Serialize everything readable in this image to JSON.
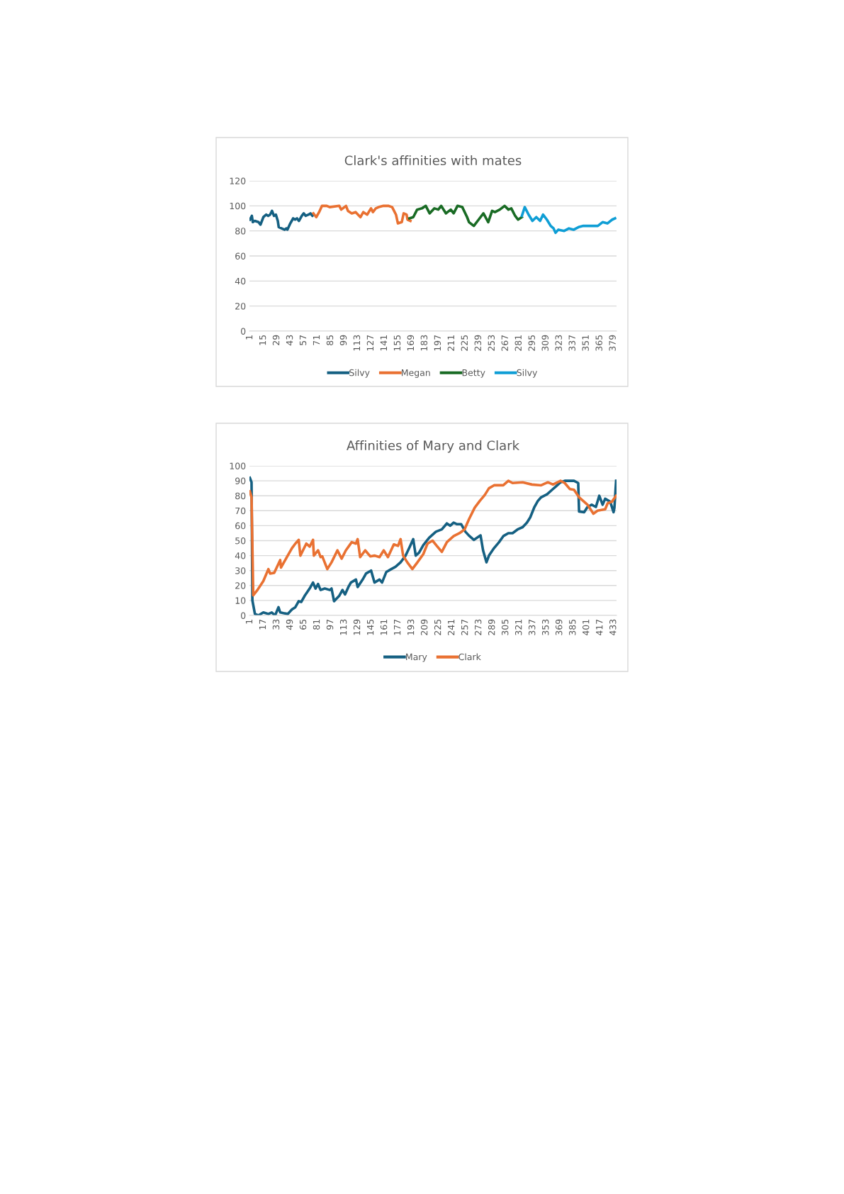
{
  "chart_data": [
    {
      "type": "line",
      "title": "Clark's affinities with mates",
      "xlim": [
        0.5,
        382.5
      ],
      "xticks": [
        1,
        15,
        29,
        43,
        57,
        71,
        85,
        99,
        113,
        127,
        141,
        155,
        169,
        183,
        197,
        211,
        225,
        239,
        253,
        267,
        281,
        295,
        309,
        323,
        337,
        351,
        365,
        379
      ],
      "ylim": [
        0,
        120
      ],
      "yticks": [
        0,
        20,
        40,
        60,
        80,
        100,
        120
      ],
      "grid": "y",
      "legend": "bottom",
      "marker": "none",
      "line_style": "solid",
      "series": [
        {
          "name": "Silvy",
          "color": "#156082",
          "x": [
            1,
            3,
            4,
            6,
            10,
            12,
            15,
            18,
            20,
            22,
            24,
            26,
            28,
            30,
            31,
            34,
            37,
            39,
            40,
            43,
            46,
            48,
            50,
            52,
            55,
            57,
            59,
            62,
            64,
            66,
            67
          ],
          "values": [
            89,
            92,
            87,
            88,
            87,
            85,
            91,
            93,
            92,
            93,
            96,
            92,
            93,
            88,
            83,
            82,
            81,
            82,
            81,
            86,
            90,
            89,
            90,
            88,
            92,
            94,
            92,
            93,
            94,
            92,
            93
          ]
        },
        {
          "name": "Megan",
          "color": "#E97132",
          "x": [
            67,
            70,
            73,
            76,
            81,
            84,
            94,
            96,
            101,
            103,
            107,
            111,
            116,
            119,
            123,
            127,
            129,
            132,
            135,
            140,
            145,
            149,
            153,
            155,
            159,
            161,
            164,
            165,
            168
          ],
          "values": [
            94,
            91,
            95,
            100,
            100,
            99,
            100,
            97,
            100,
            96,
            94,
            95,
            91,
            95,
            93,
            98,
            95,
            98,
            99,
            100,
            100,
            99,
            93,
            86,
            87,
            94,
            93,
            89,
            88
          ]
        },
        {
          "name": "Betty",
          "color": "#196B24",
          "x": [
            167,
            171,
            175,
            180,
            184,
            188,
            193,
            197,
            200,
            205,
            210,
            213,
            217,
            222,
            227,
            229,
            234,
            239,
            244,
            249,
            253,
            256,
            261,
            266,
            270,
            273,
            277,
            280,
            284
          ],
          "values": [
            90,
            91,
            97,
            98,
            100,
            94,
            98,
            97,
            100,
            94,
            97,
            94,
            100,
            99,
            91,
            87,
            84,
            89,
            94,
            87,
            96,
            95,
            97,
            100,
            97,
            98,
            92,
            89,
            91
          ]
        },
        {
          "name": "Silvy",
          "color": "#0F9ED5",
          "x": [
            284,
            287,
            291,
            295,
            299,
            303,
            306,
            310,
            314,
            317,
            319,
            322,
            328,
            333,
            338,
            343,
            348,
            353,
            358,
            363,
            368,
            373,
            378,
            381
          ],
          "values": [
            92,
            99,
            93,
            88,
            91,
            88,
            93,
            89,
            84,
            82,
            78.5,
            81,
            80,
            82,
            81,
            83,
            84,
            84,
            84,
            84,
            87,
            86,
            89,
            90
          ]
        }
      ]
    },
    {
      "type": "line",
      "title": "Affinities of Mary and Clark",
      "xlim": [
        0.5,
        436.5
      ],
      "xticks": [
        1,
        17,
        33,
        49,
        65,
        81,
        97,
        113,
        129,
        145,
        161,
        177,
        193,
        209,
        225,
        241,
        257,
        273,
        289,
        305,
        321,
        337,
        353,
        369,
        385,
        401,
        417,
        433
      ],
      "ylim": [
        0,
        100
      ],
      "yticks": [
        0,
        10,
        20,
        30,
        40,
        50,
        60,
        70,
        80,
        90,
        100
      ],
      "grid": "y",
      "legend": "bottom",
      "marker": "none",
      "line_style": "solid",
      "series": [
        {
          "name": "Mary",
          "color": "#156082",
          "x": [
            1,
            3,
            4,
            7,
            11,
            17,
            23,
            27,
            31,
            35,
            37,
            41,
            46,
            51,
            55,
            59,
            62,
            66,
            72,
            76,
            79,
            82,
            85,
            90,
            96,
            98,
            101,
            107,
            111,
            114,
            118,
            121,
            127,
            129,
            135,
            139,
            145,
            149,
            155,
            158,
            163,
            169,
            174,
            180,
            186,
            191,
            195,
            198,
            202,
            207,
            214,
            222,
            229,
            235,
            239,
            243,
            247,
            252,
            257,
            261,
            267,
            271,
            275,
            278,
            282,
            285,
            291,
            297,
            302,
            308,
            313,
            319,
            325,
            330,
            334,
            339,
            343,
            347,
            354,
            360,
            364,
            370,
            375,
            381,
            386,
            391,
            392,
            398,
            402,
            407,
            412,
            416,
            420,
            423,
            429,
            433,
            434,
            436
          ],
          "values": [
            92,
            89,
            10,
            1,
            0,
            2,
            1,
            2,
            0,
            5.5,
            2,
            1.5,
            1,
            4,
            5.5,
            9.5,
            9,
            13,
            18,
            22,
            18,
            21,
            17,
            18,
            17,
            18,
            9.5,
            13,
            17,
            14,
            19,
            22,
            24,
            19,
            24,
            28,
            30,
            22,
            24,
            22,
            29,
            31,
            32.5,
            35.5,
            40,
            46,
            51,
            40,
            42,
            47,
            52,
            56,
            57.5,
            61.5,
            60,
            62,
            61,
            61,
            56,
            53.5,
            50.5,
            52,
            53.5,
            43.5,
            35.5,
            40,
            45,
            49,
            53,
            55,
            55,
            57.5,
            59,
            62,
            65.5,
            72.5,
            76.5,
            79,
            81,
            84,
            86,
            89,
            90,
            90,
            90,
            88.5,
            69.5,
            69,
            72.5,
            74,
            72.5,
            80,
            74,
            78,
            76,
            69,
            72,
            90
          ]
        },
        {
          "name": "Clark",
          "color": "#E97132",
          "x": [
            1,
            3,
            5,
            10,
            17,
            23,
            25,
            30,
            37,
            38,
            45,
            51,
            55,
            59,
            61,
            68,
            72,
            76,
            77,
            82,
            85,
            87,
            93,
            98,
            105,
            110,
            115,
            122,
            127,
            129,
            132,
            138,
            144,
            149,
            155,
            160,
            165,
            172,
            177,
            180,
            183,
            188,
            194,
            200,
            207,
            212,
            218,
            223,
            229,
            235,
            243,
            250,
            256,
            261,
            268,
            274,
            280,
            285,
            291,
            302,
            308,
            313,
            325,
            336,
            347,
            355,
            361,
            370,
            375,
            381,
            386,
            392,
            398,
            402,
            409,
            414,
            423,
            426,
            431,
            436
          ],
          "values": [
            83,
            79,
            13.4,
            17,
            23,
            31,
            28,
            28.5,
            37,
            32,
            39,
            45,
            48,
            50.5,
            40,
            48,
            46,
            50.5,
            40,
            43.5,
            39,
            39.5,
            31,
            35.5,
            43.5,
            38,
            43.5,
            49,
            48,
            51,
            39,
            43.5,
            39.5,
            40,
            39,
            43.5,
            39,
            47.5,
            46.5,
            51,
            40,
            35.5,
            31,
            35.5,
            41,
            48,
            50,
            46.5,
            42.5,
            49,
            53,
            55,
            57.5,
            64,
            72,
            76.5,
            80.5,
            85,
            87,
            87,
            90,
            88.5,
            89,
            87.5,
            87,
            89,
            87.5,
            90,
            88.5,
            84.5,
            84,
            79,
            76,
            74,
            68,
            70,
            71,
            75,
            76,
            80
          ]
        }
      ]
    }
  ]
}
